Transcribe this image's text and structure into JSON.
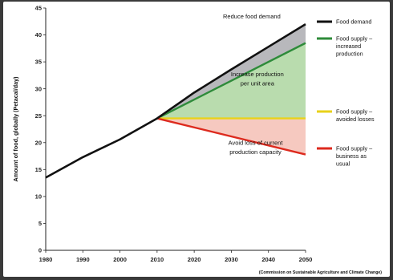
{
  "chart_data": {
    "type": "line",
    "title": "",
    "xlabel": "",
    "ylabel": "Amount of food, globally (Petacal/day)",
    "xlim": [
      1980,
      2050
    ],
    "ylim": [
      0,
      45
    ],
    "x_ticks": [
      1980,
      1990,
      2000,
      2010,
      2020,
      2030,
      2040,
      2050
    ],
    "y_ticks": [
      0,
      5,
      10,
      15,
      20,
      25,
      30,
      35,
      40,
      45
    ],
    "grid": false,
    "legend_position": "right",
    "series": [
      {
        "name": "Food demand",
        "color": "#111111",
        "x": [
          1980,
          1990,
          2000,
          2010,
          2020,
          2030,
          2040,
          2050
        ],
        "values": [
          13.5,
          17.3,
          20.6,
          24.5,
          29.3,
          33.6,
          37.8,
          42
        ]
      },
      {
        "name": "Food supply – increased production",
        "color": "#2e8b3a",
        "x": [
          2010,
          2050
        ],
        "values": [
          24.5,
          38.5
        ]
      },
      {
        "name": "Food supply – avoided losses",
        "color": "#e8d21a",
        "x": [
          2010,
          2050
        ],
        "values": [
          24.5,
          24.5
        ]
      },
      {
        "name": "Food supply – business as usual",
        "color": "#dd2a1e",
        "x": [
          2010,
          2050
        ],
        "values": [
          24.5,
          17.8
        ]
      }
    ],
    "annotations": [
      {
        "text": "Reduce food demand",
        "x": 2035.5,
        "y": 43.1
      },
      {
        "text": "Increase production",
        "x": 2037,
        "y": 32.3
      },
      {
        "text": "per unit area",
        "x": 2037,
        "y": 30.6
      },
      {
        "text": "Avoid loss of current",
        "x": 2036.5,
        "y": 19.6
      },
      {
        "text": "production capacity",
        "x": 2036.5,
        "y": 17.9
      }
    ],
    "fills": [
      {
        "between": [
          "Food demand",
          "Food supply – increased production"
        ],
        "color": "#b8b8bc"
      },
      {
        "between": [
          "Food supply – increased production",
          "Food supply – avoided losses"
        ],
        "color": "#b9dcae"
      },
      {
        "between": [
          "Food supply – avoided losses",
          "Food supply – business as usual"
        ],
        "color": "#f6c9c0"
      }
    ]
  },
  "legend": [
    {
      "lines": [
        "Food demand"
      ],
      "color": "#111111"
    },
    {
      "lines": [
        "Food supply –",
        "increased",
        "production"
      ],
      "color": "#2e8b3a"
    },
    {
      "lines": [
        "Food supply –",
        "avoided losses"
      ],
      "color": "#e8d21a"
    },
    {
      "lines": [
        "Food supply –",
        "business as",
        "usual"
      ],
      "color": "#dd2a1e"
    }
  ],
  "source": "(Commission on Sustainable Agriculture and Climate Change)"
}
